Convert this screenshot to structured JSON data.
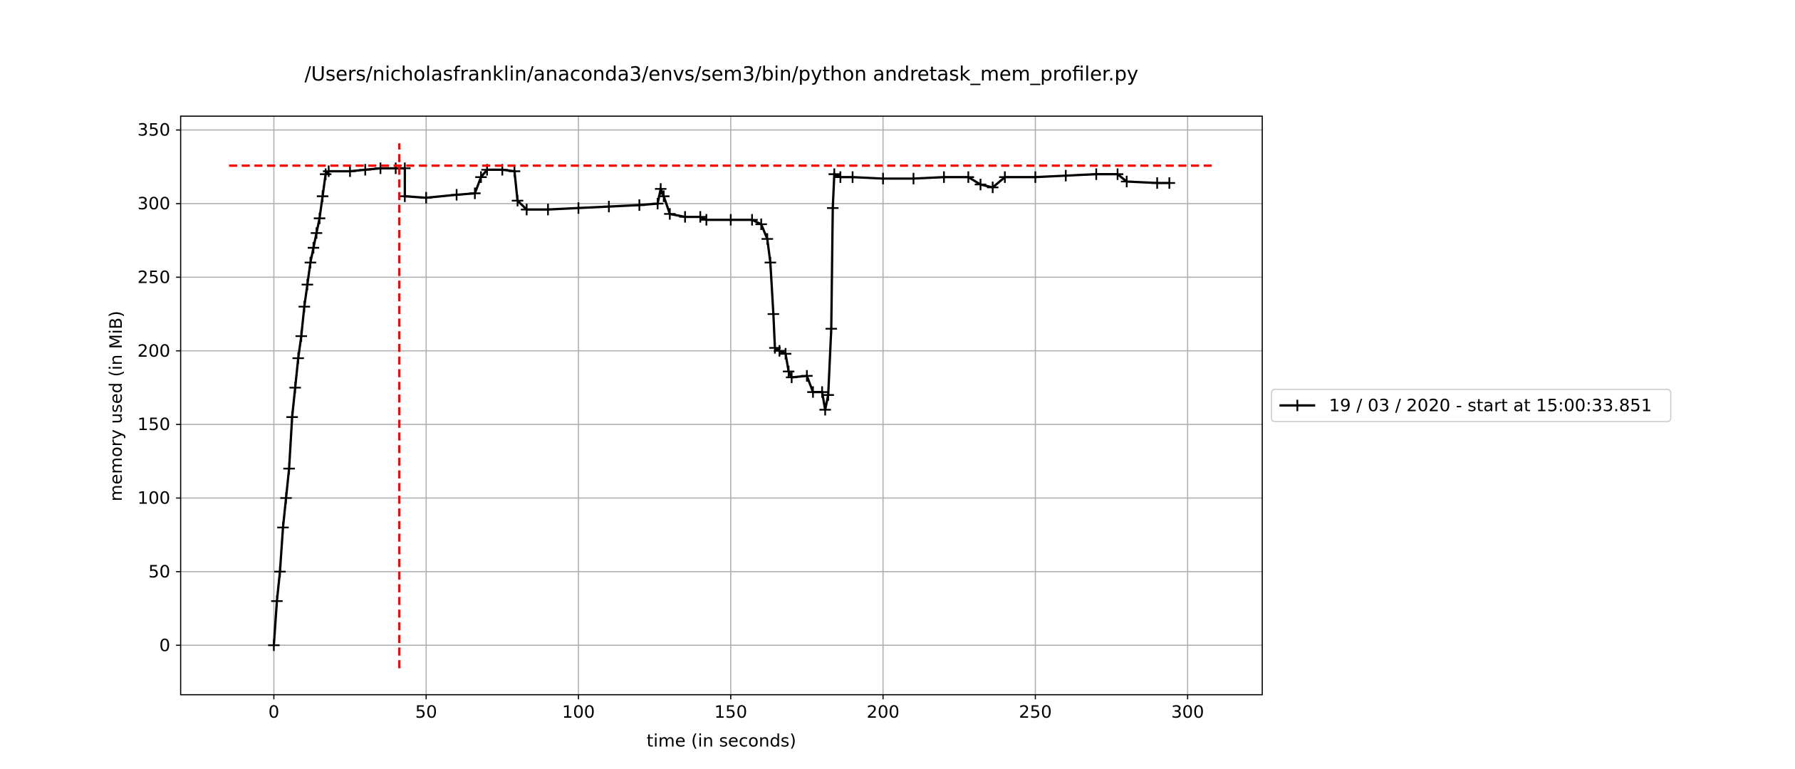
{
  "chart_data": {
    "type": "line",
    "title": "/Users/nicholasfranklin/anaconda3/envs/sem3/bin/python andretask_mem_profiler.py",
    "xlabel": "time (in seconds)",
    "ylabel": "memory used (in MiB)",
    "xlim": [
      -30.6,
      324.5
    ],
    "ylim": [
      -33.6,
      359.4
    ],
    "xticks": [
      0,
      50,
      100,
      150,
      200,
      250,
      300
    ],
    "yticks": [
      0,
      50,
      100,
      150,
      200,
      250,
      300,
      350
    ],
    "grid": true,
    "legend": "right",
    "series": [
      {
        "name": "19 / 03 / 2020 - start at 15:00:33.851",
        "color": "#000000",
        "marker": "+",
        "x": [
          0,
          1,
          2,
          3,
          4,
          5,
          6,
          7,
          8,
          9,
          10,
          11,
          12,
          13,
          14,
          15,
          16,
          17,
          18,
          25,
          30,
          35,
          40,
          43,
          43,
          50,
          60,
          66,
          68,
          70,
          75,
          79,
          80,
          83,
          90,
          100,
          110,
          120,
          126,
          127,
          128,
          130,
          135,
          140,
          142,
          150,
          157,
          160,
          162,
          163,
          164,
          164.5,
          166,
          168,
          169,
          170,
          175,
          177,
          180,
          181,
          182,
          183,
          183.5,
          184,
          186,
          190,
          200,
          210,
          220,
          228,
          232,
          236,
          240,
          250,
          260,
          270,
          277,
          280,
          290,
          294
        ],
        "values": [
          0,
          30,
          50,
          80,
          100,
          120,
          155,
          175,
          195,
          210,
          230,
          245,
          260,
          270,
          280,
          290,
          305,
          320,
          322,
          322,
          323,
          324,
          324,
          324,
          305,
          304,
          306,
          307,
          318,
          323,
          323,
          322,
          302,
          296,
          296,
          297,
          298,
          299,
          300,
          310,
          305,
          293,
          291,
          291,
          289,
          289,
          289,
          286,
          276,
          260,
          225,
          202,
          200,
          198,
          186,
          182,
          183,
          172,
          172,
          160,
          170,
          215,
          297,
          320,
          318,
          318,
          317,
          317,
          318,
          318,
          313,
          311,
          318,
          318,
          319,
          320,
          320,
          315,
          314,
          314
        ]
      }
    ],
    "hline": {
      "y": 325.8,
      "xmin": -14.7,
      "xmax": 308.3,
      "color": "#ff0000"
    },
    "vline": {
      "x": 41.2,
      "ymin": -15.6,
      "ymax": 341,
      "color": "#ff0000"
    }
  }
}
